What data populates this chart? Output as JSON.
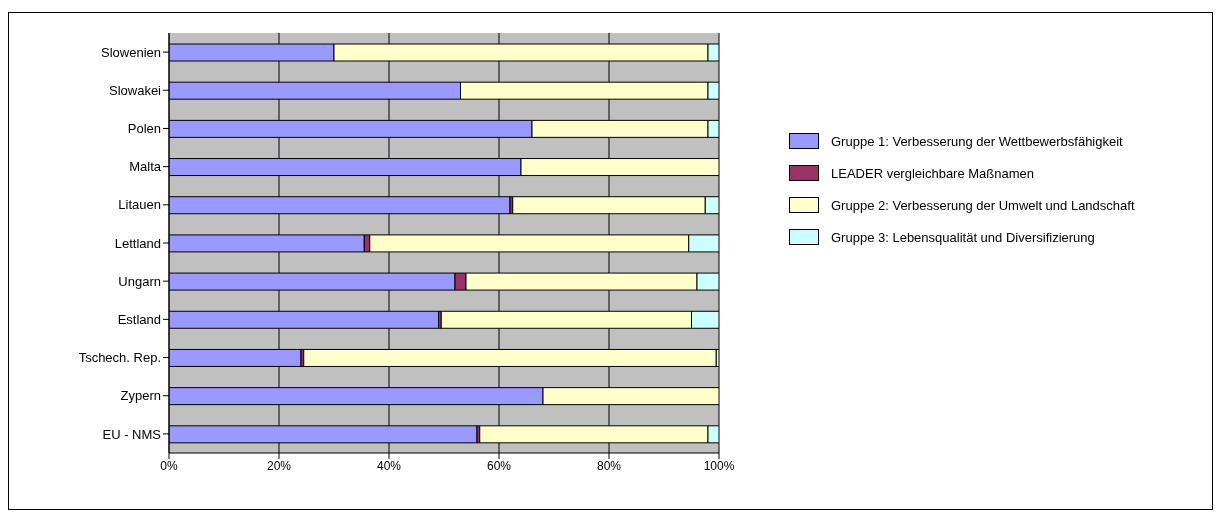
{
  "chart_data": {
    "type": "bar",
    "orientation": "horizontal",
    "stacked": true,
    "categories": [
      "Slowenien",
      "Slowakei",
      "Polen",
      "Malta",
      "Litauen",
      "Lettland",
      "Ungarn",
      "Estland",
      "Tschech. Rep.",
      "Zypern",
      "EU - NMS"
    ],
    "series": [
      {
        "name": "Gruppe 1: Verbesserung der Wettbewerbsfähigkeit",
        "color": "#9999ff",
        "values": [
          30,
          53,
          66,
          64,
          62,
          35.5,
          52,
          49,
          24,
          68,
          56
        ]
      },
      {
        "name": "LEADER vergleichbare Maßnamen",
        "color": "#993366",
        "values": [
          0,
          0,
          0,
          0,
          0.5,
          1,
          2,
          0.5,
          0.5,
          0,
          0.5
        ]
      },
      {
        "name": "Gruppe 2: Verbesserung der Umwelt und Landschaft",
        "color": "#ffffcc",
        "values": [
          68,
          45,
          32,
          36,
          35,
          58,
          42,
          45.5,
          75,
          32,
          41.5
        ]
      },
      {
        "name": "Gruppe 3: Lebensqualität und Diversifizierung",
        "color": "#ccffff",
        "values": [
          2,
          2,
          2,
          0,
          2.5,
          5.5,
          4,
          5,
          0.5,
          0,
          2
        ]
      }
    ],
    "xlim": [
      0,
      100
    ],
    "xticks": [
      {
        "value": 0,
        "label": "0%"
      },
      {
        "value": 20,
        "label": "20%"
      },
      {
        "value": 40,
        "label": "40%"
      },
      {
        "value": 60,
        "label": "60%"
      },
      {
        "value": 80,
        "label": "80%"
      },
      {
        "value": 100,
        "label": "100%"
      }
    ],
    "grid": "x",
    "legend": "right"
  }
}
